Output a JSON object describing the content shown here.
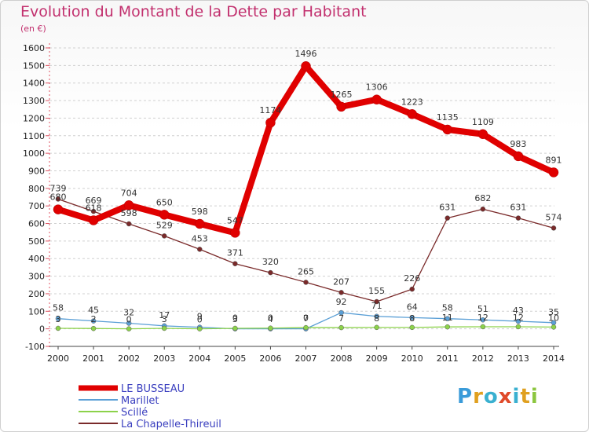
{
  "header": {
    "title": "Evolution du Montant de la Dette par Habitant",
    "subtitle": "(en €)"
  },
  "logo": {
    "text": "Proxiti",
    "letter_colors": [
      "#3a9bd9",
      "#e0a020",
      "#3ab0d0",
      "#e04a2a",
      "#3ab0d0",
      "#e0a020",
      "#8cc63f"
    ]
  },
  "chart_data": {
    "type": "line",
    "x": [
      2000,
      2001,
      2002,
      2003,
      2004,
      2005,
      2006,
      2007,
      2008,
      2009,
      2010,
      2011,
      2012,
      2013,
      2014
    ],
    "ylim": [
      -100,
      1600
    ],
    "yticks": [
      -100,
      0,
      100,
      200,
      300,
      400,
      500,
      600,
      700,
      800,
      900,
      1000,
      1100,
      1200,
      1300,
      1400,
      1500,
      1600
    ],
    "grid": "horizontal-dashed",
    "legend_position": "bottom-left",
    "series": [
      {
        "name": "LE BUSSEAU",
        "color": "#e00000",
        "width": 8,
        "values": [
          680,
          618,
          704,
          650,
          598,
          547,
          1174,
          1496,
          1265,
          1306,
          1223,
          1135,
          1109,
          983,
          891
        ]
      },
      {
        "name": "Marillet",
        "color": "#5a9fd6",
        "width": 1.3,
        "values": [
          58,
          45,
          32,
          17,
          9,
          0,
          0,
          0,
          92,
          71,
          64,
          58,
          51,
          43,
          35
        ]
      },
      {
        "name": "Scillé",
        "color": "#8cd24a",
        "width": 1.3,
        "values": [
          3,
          2,
          0,
          3,
          0,
          3,
          4,
          7,
          7,
          8,
          8,
          11,
          12,
          12,
          10
        ]
      },
      {
        "name": "La Chapelle-Thireuil",
        "color": "#7a2a2a",
        "width": 1.3,
        "values": [
          739,
          669,
          598,
          529,
          453,
          371,
          320,
          265,
          207,
          155,
          226,
          631,
          682,
          631,
          574
        ]
      }
    ]
  }
}
